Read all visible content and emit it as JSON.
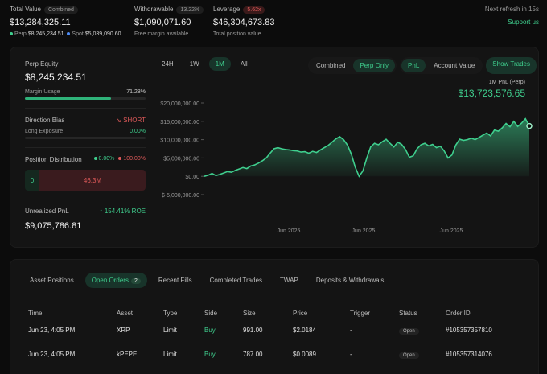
{
  "summary": {
    "total_value_label": "Total Value",
    "total_value_pill": "Combined",
    "total_value": "$13,284,325.11",
    "perp_label": "Perp",
    "perp_value": "$8,245,234.51",
    "spot_label": "Spot",
    "spot_value": "$5,039,090.60",
    "withdrawable_label": "Withdrawable",
    "withdrawable_pill": "13.22%",
    "withdrawable_value": "$1,090,071.60",
    "withdrawable_sub": "Free margin available",
    "leverage_label": "Leverage",
    "leverage_pill": "5.62x",
    "leverage_value": "$46,304,673.83",
    "leverage_sub": "Total position value",
    "next_refresh": "Next refresh in 15s",
    "support": "Support us"
  },
  "left": {
    "perp_equity_label": "Perp Equity",
    "perp_equity_value": "$8,245,234.51",
    "margin_usage_label": "Margin Usage",
    "margin_usage_pct": "71.28%",
    "margin_usage_fraction": 0.7128,
    "direction_bias_label": "Direction Bias",
    "direction_bias_value": "SHORT",
    "long_exposure_label": "Long Exposure",
    "long_exposure_pct": "0.00%",
    "position_distribution_label": "Position Distribution",
    "dist_long_pct": "0.00%",
    "dist_short_pct": "100.00%",
    "dist_long_value": "0",
    "dist_short_value": "46.3M",
    "unrealized_pnl_label": "Unrealized PnL",
    "unrealized_roe": "154.41% ROE",
    "unrealized_pnl_value": "$9,075,786.81"
  },
  "range_tabs": [
    "24H",
    "1W",
    "1M",
    "All"
  ],
  "range_active": "1M",
  "view_tabs": [
    "Combined",
    "Perp Only"
  ],
  "view_active": "Perp Only",
  "metric_tabs": [
    "PnL",
    "Account Value"
  ],
  "metric_active": "PnL",
  "show_trades": "Show Trades",
  "pnl_header": {
    "title": "1M PnL (Perp)",
    "value": "$13,723,576.65"
  },
  "chart_data": {
    "type": "area",
    "y_ticks": [
      "$20,000,000.00",
      "$15,000,000.00",
      "$10,000,000.00",
      "$5,000,000.00",
      "$0.00",
      "$-5,000,000.00"
    ],
    "ylim": [
      -5000000,
      20000000
    ],
    "x_tick_labels": [
      "Jun 2025",
      "Jun 2025",
      "Jun 2025"
    ],
    "color": "#3fcf8e",
    "values": [
      0,
      300000,
      800000,
      200000,
      500000,
      900000,
      1300000,
      1100000,
      1600000,
      2000000,
      2400000,
      2100000,
      2800000,
      3100000,
      3600000,
      4200000,
      5000000,
      6300000,
      7500000,
      7800000,
      7500000,
      7300000,
      7200000,
      7000000,
      6900000,
      6600000,
      6700000,
      6300000,
      6800000,
      6500000,
      7200000,
      7800000,
      8400000,
      9300000,
      10200000,
      10800000,
      10000000,
      8500000,
      6000000,
      2500000,
      0,
      1500000,
      5000000,
      8000000,
      9000000,
      8600000,
      9400000,
      10100000,
      9000000,
      8000000,
      9300000,
      8700000,
      7300000,
      5200000,
      5600000,
      7500000,
      8600000,
      9000000,
      8300000,
      8700000,
      7800000,
      8200000,
      6900000,
      5000000,
      5800000,
      8500000,
      10100000,
      9800000,
      10000000,
      10400000,
      10000000,
      10600000,
      11200000,
      11800000,
      11000000,
      12600000,
      12300000,
      13200000,
      14400000,
      13500000,
      15000000,
      13600000,
      14500000,
      15700000,
      13723576.65
    ]
  },
  "orders": {
    "tabs": [
      "Asset Positions",
      "Open Orders",
      "Recent Fills",
      "Completed Trades",
      "TWAP",
      "Deposits & Withdrawals"
    ],
    "active_tab": "Open Orders",
    "open_orders_count": "2",
    "columns": [
      "Time",
      "Asset",
      "Type",
      "Side",
      "Size",
      "Price",
      "Trigger",
      "Status",
      "Order ID"
    ],
    "rows": [
      [
        "Jun 23, 4:05 PM",
        "XRP",
        "Limit",
        "Buy",
        "991.00",
        "$2.0184",
        "-",
        "Open",
        "#105357357810"
      ],
      [
        "Jun 23, 4:05 PM",
        "kPEPE",
        "Limit",
        "Buy",
        "787.00",
        "$0.0089",
        "-",
        "Open",
        "#105357314076"
      ]
    ]
  }
}
